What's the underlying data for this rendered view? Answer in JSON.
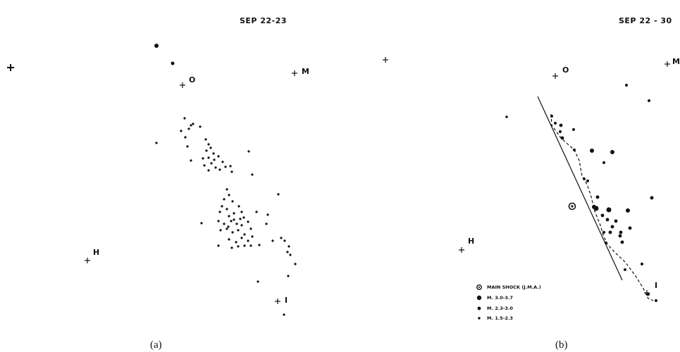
{
  "panel_a": {
    "title": "SEP 22-23",
    "caption": "(a)",
    "stations": {
      "O": "O",
      "M": "M",
      "H": "H",
      "I": "I"
    }
  },
  "panel_b": {
    "title": "SEP 22 - 30",
    "caption": "(b)",
    "stations": {
      "O": "O",
      "M": "M",
      "H": "H",
      "I": "I"
    }
  },
  "legend": {
    "items": [
      {
        "label": "MAIN SHOCK (J.M.A.)",
        "symbol": "ring"
      },
      {
        "label": "M. 3.0-3.7",
        "symbol": "dot-large"
      },
      {
        "label": "M. 2.3-3.0",
        "symbol": "dot-medium"
      },
      {
        "label": "M. 1.5-2.3",
        "symbol": "dot-small"
      }
    ]
  },
  "colors": {
    "ink": "#111111",
    "background": "#ffffff"
  }
}
